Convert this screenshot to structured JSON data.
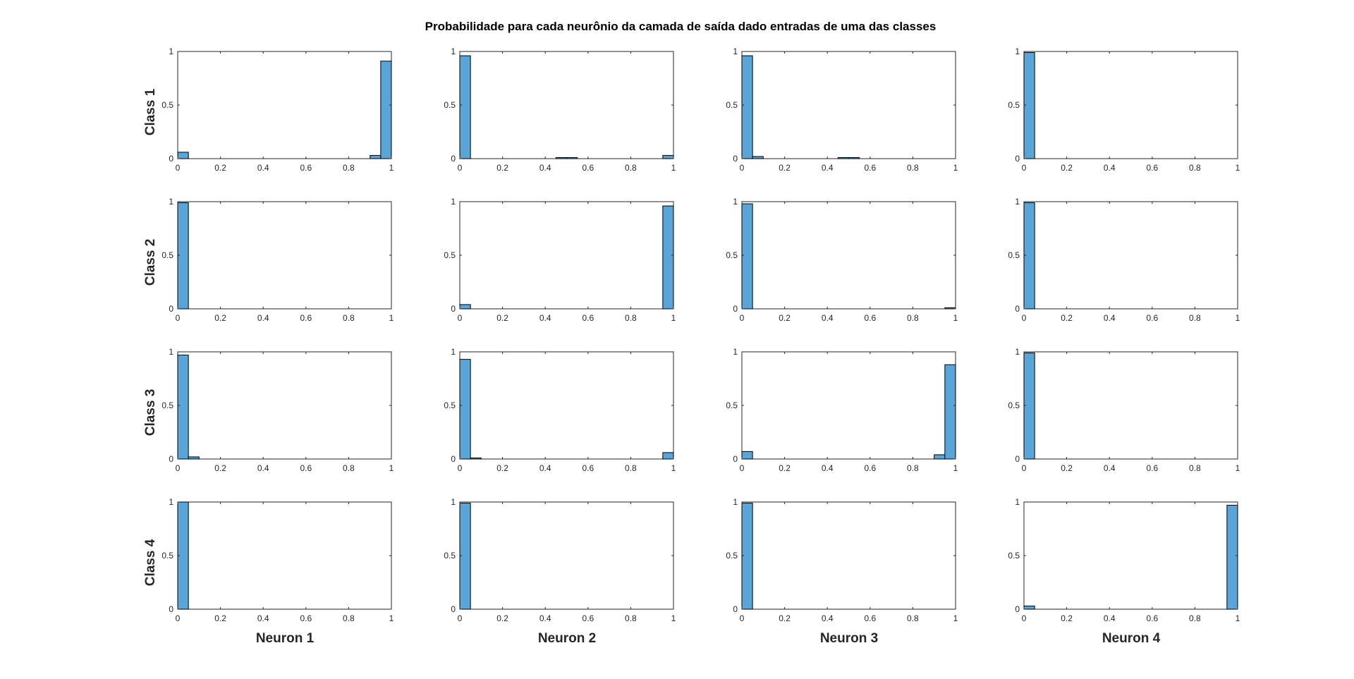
{
  "figure": {
    "title": "Probabilidade para cada neurônio da camada de saída dado entradas de uma das classes",
    "row_labels": [
      "Class 1",
      "Class 2",
      "Class 3",
      "Class 4"
    ],
    "col_labels": [
      "Neuron 1",
      "Neuron 2",
      "Neuron 3",
      "Neuron 4"
    ],
    "bar_color": "#5aa4d8"
  },
  "chart_data": {
    "type": "bar",
    "subtype": "histogram-grid",
    "bin_edges": [
      0,
      0.05,
      0.1,
      0.15,
      0.2,
      0.25,
      0.3,
      0.35,
      0.4,
      0.45,
      0.5,
      0.55,
      0.6,
      0.65,
      0.7,
      0.75,
      0.8,
      0.85,
      0.9,
      0.95,
      1.0
    ],
    "xlim": [
      0,
      1
    ],
    "ylim": [
      0,
      1
    ],
    "xticks": [
      "0",
      "0.2",
      "0.4",
      "0.6",
      "0.8",
      "1"
    ],
    "yticks": [
      "0",
      "0.5",
      "1"
    ],
    "grid": false,
    "panels": [
      {
        "row": "Class 1",
        "col": "Neuron 1",
        "values": [
          0.06,
          0,
          0,
          0,
          0,
          0,
          0,
          0,
          0,
          0,
          0,
          0,
          0,
          0,
          0,
          0,
          0,
          0,
          0.03,
          0.91
        ]
      },
      {
        "row": "Class 1",
        "col": "Neuron 2",
        "values": [
          0.96,
          0,
          0,
          0,
          0,
          0,
          0,
          0,
          0,
          0.01,
          0.01,
          0,
          0,
          0,
          0,
          0,
          0,
          0,
          0,
          0.03
        ]
      },
      {
        "row": "Class 1",
        "col": "Neuron 3",
        "values": [
          0.96,
          0.02,
          0,
          0,
          0,
          0,
          0,
          0,
          0,
          0.01,
          0.01,
          0,
          0,
          0,
          0,
          0,
          0,
          0,
          0,
          0
        ]
      },
      {
        "row": "Class 1",
        "col": "Neuron 4",
        "values": [
          0.99,
          0,
          0,
          0,
          0,
          0,
          0,
          0,
          0,
          0,
          0,
          0,
          0,
          0,
          0,
          0,
          0,
          0,
          0,
          0
        ]
      },
      {
        "row": "Class 2",
        "col": "Neuron 1",
        "values": [
          0.99,
          0,
          0,
          0,
          0,
          0,
          0,
          0,
          0,
          0,
          0,
          0,
          0,
          0,
          0,
          0,
          0,
          0,
          0,
          0
        ]
      },
      {
        "row": "Class 2",
        "col": "Neuron 2",
        "values": [
          0.04,
          0,
          0,
          0,
          0,
          0,
          0,
          0,
          0,
          0,
          0,
          0,
          0,
          0,
          0,
          0,
          0,
          0,
          0,
          0.96
        ]
      },
      {
        "row": "Class 2",
        "col": "Neuron 3",
        "values": [
          0.98,
          0,
          0,
          0,
          0,
          0,
          0,
          0,
          0,
          0,
          0,
          0,
          0,
          0,
          0,
          0,
          0,
          0,
          0,
          0.01
        ]
      },
      {
        "row": "Class 2",
        "col": "Neuron 4",
        "values": [
          0.99,
          0,
          0,
          0,
          0,
          0,
          0,
          0,
          0,
          0,
          0,
          0,
          0,
          0,
          0,
          0,
          0,
          0,
          0,
          0
        ]
      },
      {
        "row": "Class 3",
        "col": "Neuron 1",
        "values": [
          0.97,
          0.02,
          0,
          0,
          0,
          0,
          0,
          0,
          0,
          0,
          0,
          0,
          0,
          0,
          0,
          0,
          0,
          0,
          0,
          0
        ]
      },
      {
        "row": "Class 3",
        "col": "Neuron 2",
        "values": [
          0.93,
          0.01,
          0,
          0,
          0,
          0,
          0,
          0,
          0,
          0,
          0,
          0,
          0,
          0,
          0,
          0,
          0,
          0,
          0,
          0.06
        ]
      },
      {
        "row": "Class 3",
        "col": "Neuron 3",
        "values": [
          0.07,
          0,
          0,
          0,
          0,
          0,
          0,
          0,
          0,
          0,
          0,
          0,
          0,
          0,
          0,
          0,
          0,
          0,
          0.04,
          0.88
        ]
      },
      {
        "row": "Class 3",
        "col": "Neuron 4",
        "values": [
          0.99,
          0,
          0,
          0,
          0,
          0,
          0,
          0,
          0,
          0,
          0,
          0,
          0,
          0,
          0,
          0,
          0,
          0,
          0,
          0
        ]
      },
      {
        "row": "Class 4",
        "col": "Neuron 1",
        "values": [
          1.0,
          0,
          0,
          0,
          0,
          0,
          0,
          0,
          0,
          0,
          0,
          0,
          0,
          0,
          0,
          0,
          0,
          0,
          0,
          0
        ]
      },
      {
        "row": "Class 4",
        "col": "Neuron 2",
        "values": [
          0.99,
          0,
          0,
          0,
          0,
          0,
          0,
          0,
          0,
          0,
          0,
          0,
          0,
          0,
          0,
          0,
          0,
          0,
          0,
          0
        ]
      },
      {
        "row": "Class 4",
        "col": "Neuron 3",
        "values": [
          0.99,
          0,
          0,
          0,
          0,
          0,
          0,
          0,
          0,
          0,
          0,
          0,
          0,
          0,
          0,
          0,
          0,
          0,
          0,
          0
        ]
      },
      {
        "row": "Class 4",
        "col": "Neuron 4",
        "values": [
          0.03,
          0,
          0,
          0,
          0,
          0,
          0,
          0,
          0,
          0,
          0,
          0,
          0,
          0,
          0,
          0,
          0,
          0,
          0,
          0.97
        ]
      }
    ]
  }
}
